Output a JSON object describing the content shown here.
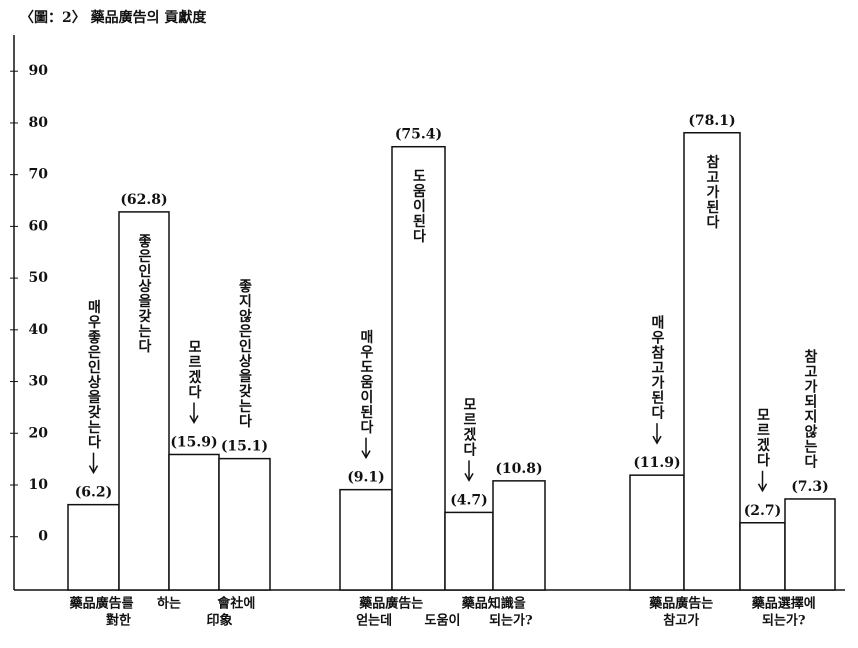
{
  "chart_data": {
    "type": "bar",
    "title": "〈圖：2〉 藥品廣告의 貢獻度",
    "ylim": [
      -10.3,
      97
    ],
    "yticks": [
      0,
      10,
      20,
      30,
      40,
      50,
      60,
      70,
      80,
      90
    ],
    "color": "#ffffff",
    "groups": [
      {
        "label_lines": [
          [
            "藥品廣告를",
            "하는",
            "會社에"
          ],
          [
            "對한",
            "印象"
          ]
        ],
        "bars": [
          {
            "value": 6.2,
            "value_label": "(6.2)",
            "note": "매우좋은인상을갖는다",
            "arrow": true,
            "inside": false
          },
          {
            "value": 62.8,
            "value_label": "(62.8)",
            "note": "좋은인상을갖는다",
            "arrow": false,
            "inside": true
          },
          {
            "value": 15.9,
            "value_label": "(15.9)",
            "note": "모르겠다",
            "arrow": true,
            "inside": false
          },
          {
            "value": 15.1,
            "value_label": "(15.1)",
            "note": "좋지않은인상을갖는다",
            "arrow": false,
            "inside": false
          }
        ]
      },
      {
        "label_lines": [
          [
            "藥品廣告는",
            "藥品知識을"
          ],
          [
            "얻는데",
            "도움이",
            "되는가?"
          ]
        ],
        "bars": [
          {
            "value": 9.1,
            "value_label": "(9.1)",
            "note": "매우도움이된다",
            "arrow": true,
            "inside": false
          },
          {
            "value": 75.4,
            "value_label": "(75.4)",
            "note": "도움이된다",
            "arrow": false,
            "inside": true
          },
          {
            "value": 4.7,
            "value_label": "(4.7)",
            "note": "모르겠다",
            "arrow": true,
            "inside": false
          },
          {
            "value": 10.8,
            "value_label": "(10.8)"
          }
        ]
      },
      {
        "label_lines": [
          [
            "藥品廣告는",
            "藥品選擇에"
          ],
          [
            "참고가",
            "되는가?"
          ]
        ],
        "bars": [
          {
            "value": 11.9,
            "value_label": "(11.9)",
            "note": "매우참고가된다",
            "arrow": true,
            "inside": false
          },
          {
            "value": 78.1,
            "value_label": "(78.1)",
            "note": "참고가된다",
            "arrow": false,
            "inside": true
          },
          {
            "value": 2.7,
            "value_label": "(2.7)",
            "note": "모르겠다",
            "arrow": true,
            "inside": false
          },
          {
            "value": 7.3,
            "value_label": "(7.3)",
            "note": "참고가되지않는다",
            "arrow": false,
            "inside": false
          }
        ]
      }
    ]
  }
}
